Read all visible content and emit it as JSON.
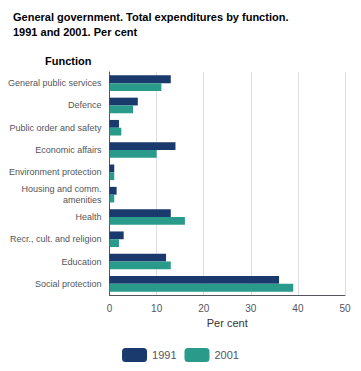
{
  "chart_data": {
    "type": "bar",
    "orientation": "horizontal",
    "title": "General government. Total expenditures by function.",
    "subtitle": "1991 and 2001. Per cent",
    "xlabel": "Per cent",
    "ylabel": "Function",
    "categories": [
      "General public services",
      "Defence",
      "Public order and safety",
      "Economic affairs",
      "Environment protection",
      "Housing and comm.\namenities",
      "Health",
      "Recr., cult. and religion",
      "Education",
      "Social protection"
    ],
    "series": [
      {
        "name": "1991",
        "color": "#1a3a6e",
        "values": [
          13,
          6,
          2,
          14,
          1,
          1.5,
          13,
          3,
          12,
          36
        ]
      },
      {
        "name": "2001",
        "color": "#2a9a8a",
        "values": [
          11,
          5,
          2.5,
          10,
          1,
          1,
          16,
          2,
          13,
          39
        ]
      }
    ],
    "xlim": [
      0,
      50
    ],
    "xticks": [
      0,
      10,
      20,
      30,
      40,
      50
    ],
    "grid": true,
    "legend": "bottom"
  }
}
